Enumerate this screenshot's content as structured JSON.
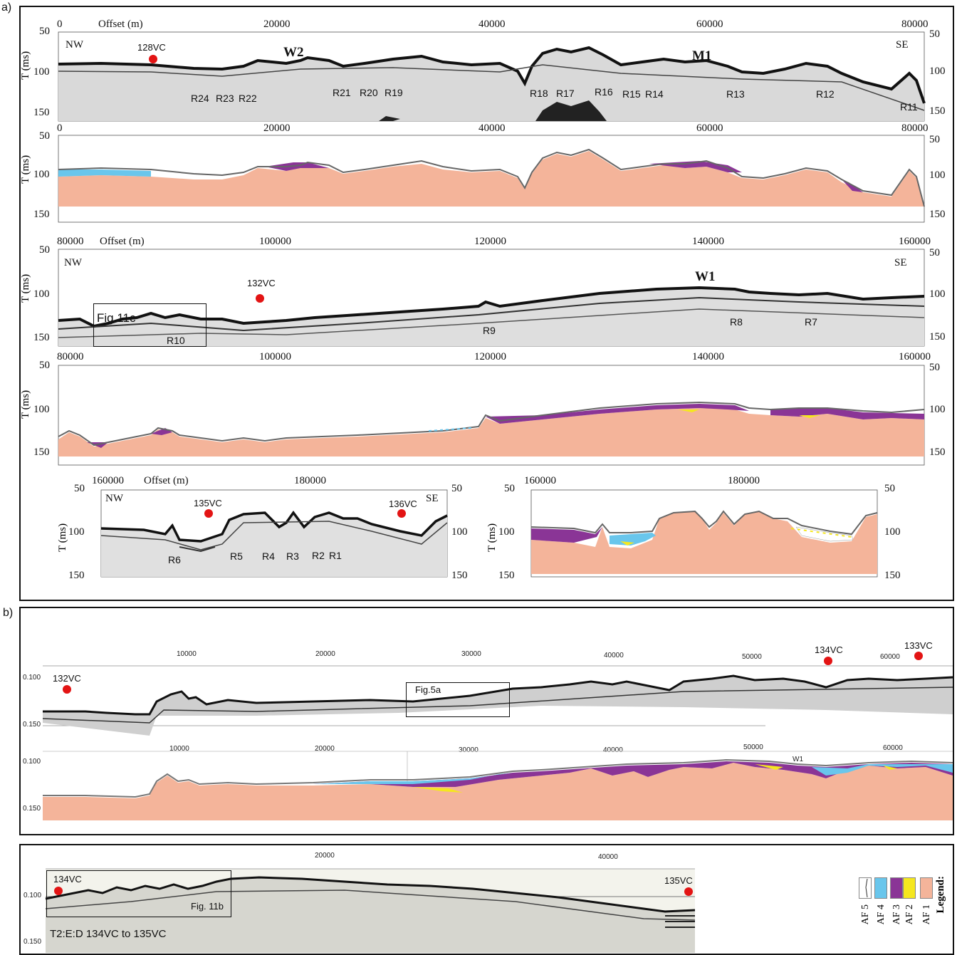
{
  "panel_a_label": "a)",
  "panel_b_label": "b)",
  "section1": {
    "offset_label": "Offset (m)",
    "x_ticks": [
      "0",
      "20000",
      "40000",
      "60000",
      "80000"
    ],
    "y_ticks": [
      "50",
      "100",
      "150"
    ],
    "y_title": "T (ms)",
    "nw": "NW",
    "se": "SE",
    "core": "128VC",
    "features": [
      "W2",
      "M1"
    ],
    "reflectors": [
      "R24",
      "R23",
      "R22",
      "R21",
      "R20",
      "R19",
      "R18",
      "R17",
      "R16",
      "R15",
      "R14",
      "R13",
      "R12",
      "R11"
    ]
  },
  "section2": {
    "offset_label": "Offset (m)",
    "x_ticks": [
      "80000",
      "100000",
      "120000",
      "140000",
      "160000"
    ],
    "y_ticks": [
      "50",
      "100",
      "150"
    ],
    "y_title": "T (ms)",
    "nw": "NW",
    "se": "SE",
    "core": "132VC",
    "feature": "W1",
    "box_label": "Fig 11c",
    "reflectors": [
      "R10",
      "R9",
      "R8",
      "R7"
    ]
  },
  "section3": {
    "offset_label": "Offset (m)",
    "x_ticks": [
      "160000",
      "180000"
    ],
    "y_ticks": [
      "50",
      "100",
      "150"
    ],
    "y_title": "T (ms)",
    "nw": "NW",
    "se": "SE",
    "cores": [
      "135VC",
      "136VC"
    ],
    "reflectors": [
      "R6",
      "R5",
      "R4",
      "R3",
      "R2",
      "R1"
    ]
  },
  "panel_b": {
    "x_ticks": [
      "10000",
      "20000",
      "30000",
      "40000",
      "50000",
      "60000"
    ],
    "y_ticks": [
      "0.100",
      "0.150"
    ],
    "cores": [
      "132VC",
      "134VC",
      "133VC"
    ],
    "box_label": "Fig.5a",
    "feature": "W1"
  },
  "panel_c": {
    "x_ticks": [
      "20000",
      "40000"
    ],
    "y_ticks": [
      "0.100",
      "0.150"
    ],
    "cores": [
      "134VC",
      "135VC"
    ],
    "box_label": "Fig. 11b",
    "caption": "T2:E:D 134VC to 135VC"
  },
  "legend": {
    "title": "Legend:",
    "items": [
      {
        "label": "AF 1",
        "color": "#f4b49a"
      },
      {
        "label": "AF 2",
        "color": "#f5e71f"
      },
      {
        "label": "AF 3",
        "color": "#8a3596"
      },
      {
        "label": "AF 4",
        "color": "#69c6ec"
      },
      {
        "label": "AF 5",
        "color": "#ffffff"
      }
    ]
  },
  "colors": {
    "af1": "#f4b49a",
    "af2": "#f5e71f",
    "af3": "#8a3596",
    "af4": "#69c6ec",
    "core_dot": "#e31414",
    "seismic": "#1a1a1a"
  }
}
